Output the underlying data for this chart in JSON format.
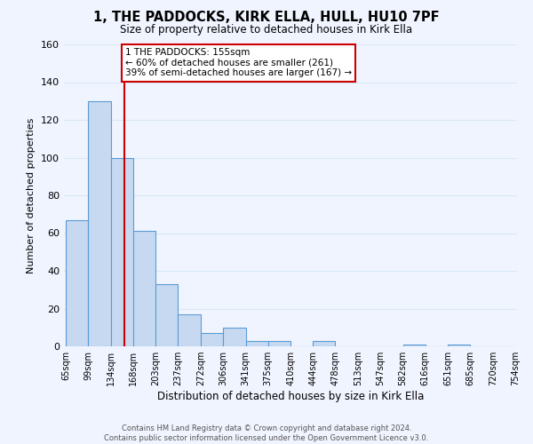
{
  "title": "1, THE PADDOCKS, KIRK ELLA, HULL, HU10 7PF",
  "subtitle": "Size of property relative to detached houses in Kirk Ella",
  "xlabel": "Distribution of detached houses by size in Kirk Ella",
  "ylabel": "Number of detached properties",
  "bar_values": [
    67,
    130,
    100,
    61,
    33,
    17,
    7,
    10,
    3,
    3,
    0,
    3,
    0,
    0,
    0,
    1,
    0,
    1,
    0,
    0
  ],
  "bin_edges": [
    65,
    99,
    134,
    168,
    203,
    237,
    272,
    306,
    341,
    375,
    410,
    444,
    478,
    513,
    547,
    582,
    616,
    651,
    685,
    720,
    754
  ],
  "x_tick_labels": [
    "65sqm",
    "99sqm",
    "134sqm",
    "168sqm",
    "203sqm",
    "237sqm",
    "272sqm",
    "306sqm",
    "341sqm",
    "375sqm",
    "410sqm",
    "444sqm",
    "478sqm",
    "513sqm",
    "547sqm",
    "582sqm",
    "616sqm",
    "651sqm",
    "685sqm",
    "720sqm",
    "754sqm"
  ],
  "bar_color": "#c6d9f1",
  "bar_edge_color": "#5b9bd5",
  "grid_color": "#d8e8f5",
  "annotation_text_line1": "1 THE PADDOCKS: 155sqm",
  "annotation_text_line2": "← 60% of detached houses are smaller (261)",
  "annotation_text_line3": "39% of semi-detached houses are larger (167) →",
  "annotation_box_color": "#ffffff",
  "annotation_box_edge": "#cc0000",
  "vline_color": "#cc0000",
  "ylim": [
    0,
    160
  ],
  "yticks": [
    0,
    20,
    40,
    60,
    80,
    100,
    120,
    140,
    160
  ],
  "footer_line1": "Contains HM Land Registry data © Crown copyright and database right 2024.",
  "footer_line2": "Contains public sector information licensed under the Open Government Licence v3.0.",
  "bg_color": "#f0f4ff"
}
